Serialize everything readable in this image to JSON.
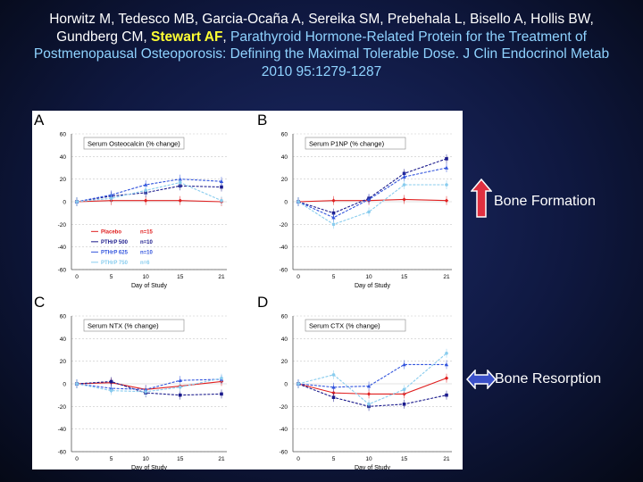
{
  "citation": {
    "authors_part1": "Horwitz M, Tedesco MB, Garcia-Ocaña A, Sereika SM, Prebehala L, Bisello A, Hollis BW, Gundberg CM, ",
    "author_highlight": "Stewart  AF",
    "separator": ", ",
    "title_rest": "Parathyroid Hormone-Related Protein for the Treatment of Postmenopausal Osteoporosis: Defining the Maximal Tolerable Dose. J Clin Endocrinol Metab 2010 95:1279-1287"
  },
  "colors": {
    "placebo": "#e02020",
    "pthrp500": "#1a1a8c",
    "pthrp625": "#3355dd",
    "pthrp750": "#88ccee",
    "formation_arrow": "#e03040",
    "resorption_arrow": "#3a50c8"
  },
  "legend_side": {
    "formation": {
      "label": "Bone Formation",
      "icon": "up-arrow-icon"
    },
    "resorption": {
      "label": "Bone Resorption",
      "icon": "double-arrow-icon"
    }
  },
  "chart_data": [
    {
      "panel": "A",
      "type": "line",
      "title": "Serum Osteocalcin (% change)",
      "xlabel": "Day of Study",
      "x": [
        0,
        5,
        10,
        15,
        21
      ],
      "xticks": [
        "0",
        "5",
        "10",
        "15",
        "21"
      ],
      "ylim": [
        -60,
        60
      ],
      "yticks": [
        60,
        40,
        20,
        0,
        -20,
        -40,
        -60
      ],
      "legend": [
        {
          "name": "Placebo",
          "n": "n=15"
        },
        {
          "name": "PTHrP 500",
          "n": "n=10"
        },
        {
          "name": "PTHrP 625",
          "n": "n=10"
        },
        {
          "name": "PTHrP 750",
          "n": "n=6"
        }
      ],
      "series": [
        {
          "name": "Placebo",
          "values": [
            0,
            1,
            1,
            1,
            0
          ]
        },
        {
          "name": "PTHrP 500",
          "values": [
            0,
            5,
            8,
            14,
            13
          ]
        },
        {
          "name": "PTHrP 625",
          "values": [
            0,
            6,
            15,
            20,
            18
          ]
        },
        {
          "name": "PTHrP 750",
          "values": [
            0,
            3,
            10,
            17,
            1
          ]
        }
      ]
    },
    {
      "panel": "B",
      "type": "line",
      "title": "Serum P1NP (% change)",
      "xlabel": "Day of Study",
      "x": [
        0,
        5,
        10,
        15,
        21
      ],
      "xticks": [
        "0",
        "5",
        "10",
        "15",
        "21"
      ],
      "ylim": [
        -60,
        60
      ],
      "yticks": [
        60,
        40,
        20,
        0,
        -20,
        -40,
        -60
      ],
      "series": [
        {
          "name": "Placebo",
          "values": [
            0,
            1,
            1,
            2,
            1
          ]
        },
        {
          "name": "PTHrP 500",
          "values": [
            0,
            -10,
            3,
            25,
            38
          ]
        },
        {
          "name": "PTHrP 625",
          "values": [
            0,
            -14,
            2,
            22,
            30
          ]
        },
        {
          "name": "PTHrP 750",
          "values": [
            0,
            -20,
            -9,
            15,
            15
          ]
        }
      ]
    },
    {
      "panel": "C",
      "type": "line",
      "title": "Serum NTX (% change)",
      "xlabel": "Day of Study",
      "x": [
        0,
        5,
        10,
        15,
        21
      ],
      "xticks": [
        "0",
        "5",
        "10",
        "15",
        "21"
      ],
      "ylim": [
        -60,
        60
      ],
      "yticks": [
        60,
        40,
        20,
        0,
        -20,
        -40,
        -60
      ],
      "series": [
        {
          "name": "Placebo",
          "values": [
            0,
            1,
            -5,
            -2,
            2
          ]
        },
        {
          "name": "PTHrP 500",
          "values": [
            0,
            2,
            -8,
            -10,
            -9
          ]
        },
        {
          "name": "PTHrP 625",
          "values": [
            0,
            -4,
            -5,
            3,
            4
          ]
        },
        {
          "name": "PTHrP 750",
          "values": [
            0,
            -6,
            -7,
            -3,
            5
          ]
        }
      ]
    },
    {
      "panel": "D",
      "type": "line",
      "title": "Serum CTX (% change)",
      "xlabel": "Day of Study",
      "x": [
        0,
        5,
        10,
        15,
        21
      ],
      "xticks": [
        "0",
        "5",
        "10",
        "15",
        "21"
      ],
      "ylim": [
        -60,
        60
      ],
      "yticks": [
        60,
        40,
        20,
        0,
        -20,
        -40,
        -60
      ],
      "series": [
        {
          "name": "Placebo",
          "values": [
            0,
            -8,
            -9,
            -9,
            5
          ]
        },
        {
          "name": "PTHrP 500",
          "values": [
            0,
            -12,
            -20,
            -18,
            -10
          ]
        },
        {
          "name": "PTHrP 625",
          "values": [
            0,
            -3,
            -2,
            17,
            17
          ]
        },
        {
          "name": "PTHrP 750",
          "values": [
            0,
            8,
            -18,
            -5,
            27
          ]
        }
      ]
    }
  ]
}
